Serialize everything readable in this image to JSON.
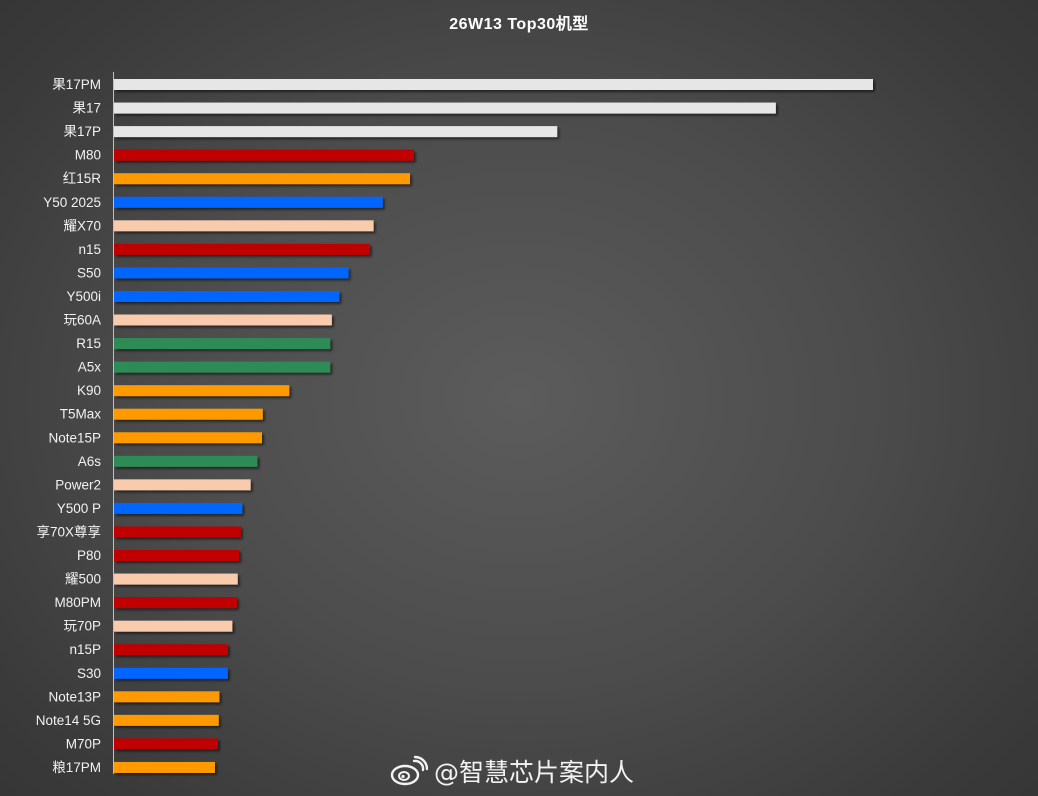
{
  "chart_data": {
    "type": "bar",
    "orientation": "horizontal",
    "title": "26W13 Top30机型",
    "xlabel": "",
    "ylabel": "",
    "grid": false,
    "legend": "none",
    "xlim": [
      0,
      1000
    ],
    "categories": [
      "果17PM",
      "果17",
      "果17P",
      "M80",
      "红15R",
      "Y50 2025",
      "耀X70",
      "n15",
      "S50",
      "Y500i",
      "玩60A",
      "R15",
      "A5x",
      "K90",
      "T5Max",
      "Note15P",
      "A6s",
      "Power2",
      "Y500 P",
      "享70X尊享",
      "P80",
      "耀500",
      "M80PM",
      "玩70P",
      "n15P",
      "S30",
      "Note13P",
      "Note14 5G",
      "M70P",
      "粮17PM"
    ],
    "values": [
      1000,
      872,
      584,
      395,
      390,
      354,
      342,
      337,
      309,
      297,
      287,
      285,
      285,
      231,
      196,
      195,
      189,
      180,
      169,
      167,
      165,
      163,
      162,
      156,
      150,
      150,
      139,
      138,
      137,
      133
    ],
    "colors": [
      "#e6e6e6",
      "#e6e6e6",
      "#e6e6e6",
      "#c00000",
      "#ff9900",
      "#0066ff",
      "#f8cbad",
      "#c00000",
      "#0066ff",
      "#0066ff",
      "#f8cbad",
      "#2e8b57",
      "#2e8b57",
      "#ff9900",
      "#ff9900",
      "#ff9900",
      "#2e8b57",
      "#f8cbad",
      "#0066ff",
      "#c00000",
      "#c00000",
      "#f8cbad",
      "#c00000",
      "#f8cbad",
      "#c00000",
      "#0066ff",
      "#ff9900",
      "#ff9900",
      "#c00000",
      "#ff9900"
    ]
  },
  "watermark": {
    "icon": "weibo-icon",
    "text": "@智慧芯片案内人"
  }
}
